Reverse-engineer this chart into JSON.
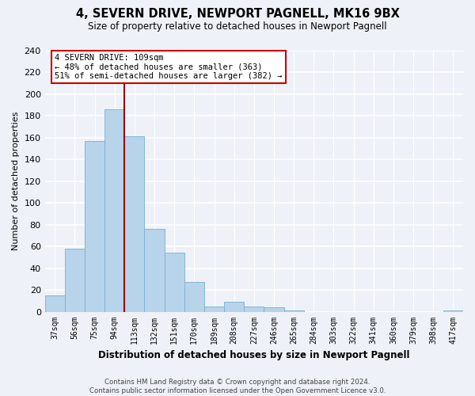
{
  "title": "4, SEVERN DRIVE, NEWPORT PAGNELL, MK16 9BX",
  "subtitle": "Size of property relative to detached houses in Newport Pagnell",
  "xlabel": "Distribution of detached houses by size in Newport Pagnell",
  "ylabel": "Number of detached properties",
  "bar_color": "#b8d4ea",
  "bar_edge_color": "#7aaecf",
  "background_color": "#eef2f8",
  "grid_color": "#ffffff",
  "categories": [
    "37sqm",
    "56sqm",
    "75sqm",
    "94sqm",
    "113sqm",
    "132sqm",
    "151sqm",
    "170sqm",
    "189sqm",
    "208sqm",
    "227sqm",
    "246sqm",
    "265sqm",
    "284sqm",
    "303sqm",
    "322sqm",
    "341sqm",
    "360sqm",
    "379sqm",
    "398sqm",
    "417sqm"
  ],
  "values": [
    15,
    58,
    157,
    186,
    161,
    76,
    54,
    27,
    5,
    9,
    5,
    4,
    1,
    0,
    0,
    0,
    0,
    0,
    0,
    0,
    1
  ],
  "ylim": [
    0,
    240
  ],
  "yticks": [
    0,
    20,
    40,
    60,
    80,
    100,
    120,
    140,
    160,
    180,
    200,
    220,
    240
  ],
  "vline_x_idx": 3,
  "vline_color": "#990000",
  "annotation_title": "4 SEVERN DRIVE: 109sqm",
  "annotation_line1": "← 48% of detached houses are smaller (363)",
  "annotation_line2": "51% of semi-detached houses are larger (382) →",
  "annotation_box_color": "#ffffff",
  "annotation_box_edge": "#cc0000",
  "footer_line1": "Contains HM Land Registry data © Crown copyright and database right 2024.",
  "footer_line2": "Contains public sector information licensed under the Open Government Licence v3.0."
}
